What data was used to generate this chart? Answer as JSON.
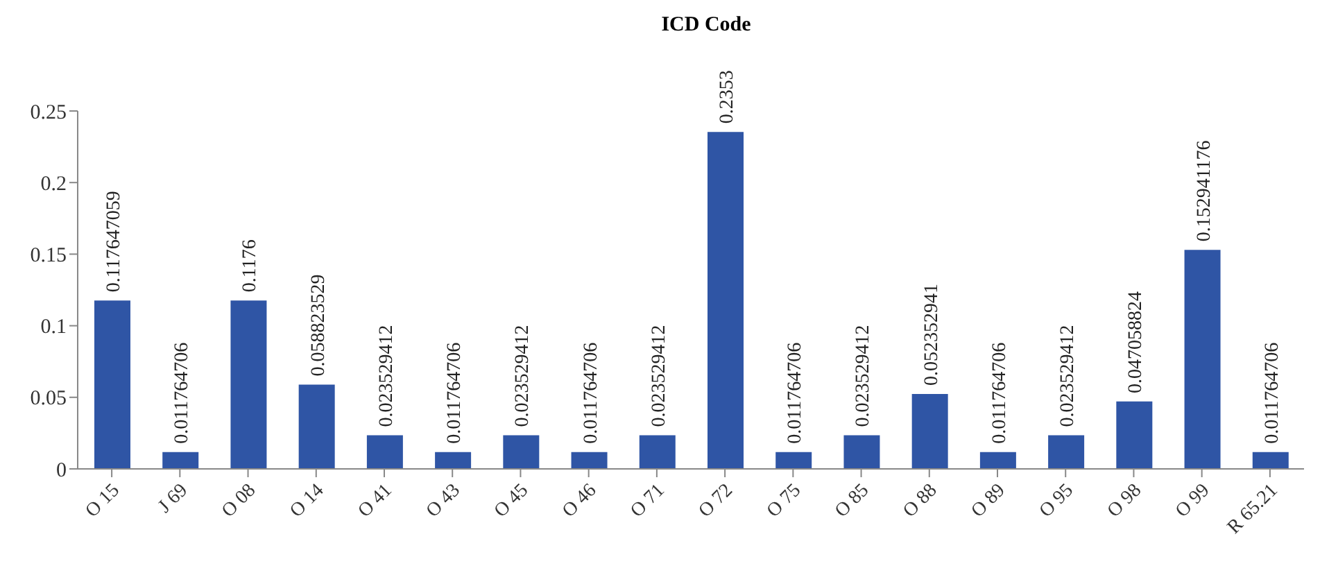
{
  "chart_data": {
    "type": "bar",
    "title": "ICD Code",
    "categories": [
      "O 15",
      "J 69",
      "O 08",
      "O 14",
      "O 41",
      "O 43",
      "O 45",
      "O 46",
      "O 71",
      "O 72",
      "O 75",
      "O 85",
      "O 88",
      "O 89",
      "O 95",
      "O 98",
      "O 99",
      "R 65.21"
    ],
    "values": [
      0.117647059,
      0.011764706,
      0.1176,
      0.058823529,
      0.023529412,
      0.011764706,
      0.023529412,
      0.011764706,
      0.023529412,
      0.2353,
      0.011764706,
      0.023529412,
      0.052352941,
      0.011764706,
      0.023529412,
      0.047058824,
      0.152941176,
      0.011764706
    ],
    "value_labels": [
      "0.117647059",
      "0.011764706",
      "0.1176",
      "0.058823529",
      "0.023529412",
      "0.011764706",
      "0.023529412",
      "0.011764706",
      "0.023529412",
      "0.2353",
      "0.011764706",
      "0.023529412",
      "0.052352941",
      "0.011764706",
      "0.023529412",
      "0.047058824",
      "0.152941176",
      "0.011764706"
    ],
    "color": "#2f55a5",
    "ylim": [
      0,
      0.25
    ],
    "yticks": [
      0,
      0.05,
      0.1,
      0.15,
      0.2,
      0.25
    ],
    "grid": false
  }
}
